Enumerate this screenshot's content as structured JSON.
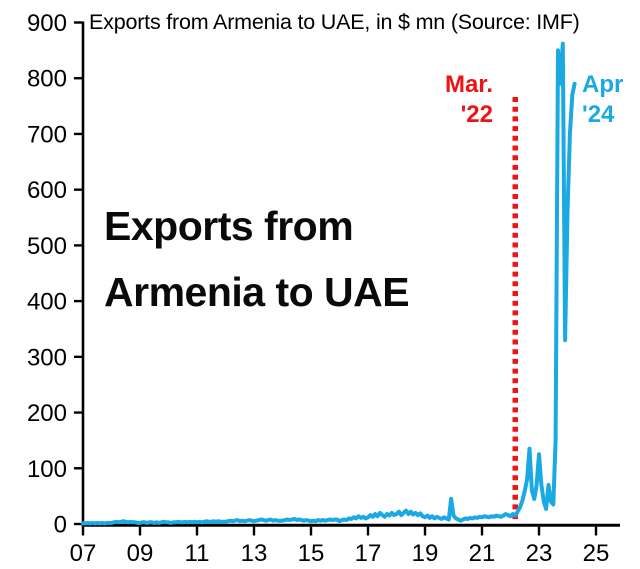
{
  "chart_data": {
    "type": "line",
    "title": "Exports from Armenia to UAE, in $ mn (Source: IMF)",
    "xlabel": "",
    "ylabel": "",
    "ylim": [
      0,
      900
    ],
    "y_ticks": [
      0,
      100,
      200,
      300,
      400,
      500,
      600,
      700,
      800,
      900
    ],
    "x_tick_years": [
      2007,
      2009,
      2011,
      2013,
      2015,
      2017,
      2019,
      2021,
      2023,
      2025
    ],
    "x_tick_labels": [
      "07",
      "09",
      "11",
      "13",
      "15",
      "17",
      "19",
      "21",
      "23",
      "25"
    ],
    "grid": false,
    "legend": "none",
    "line_color": "#1BA9E4",
    "axis_color": "#000000",
    "series": [
      {
        "name": "Exports from Armenia to UAE ($ mn)",
        "start": "2007-01",
        "end": "2024-04",
        "frequency": "monthly",
        "values": [
          1,
          1,
          2,
          1,
          2,
          1,
          2,
          1,
          2,
          1,
          2,
          2,
          2,
          3,
          4,
          3,
          4,
          5,
          4,
          3,
          4,
          3,
          3,
          2,
          2,
          3,
          3,
          2,
          3,
          3,
          2,
          3,
          2,
          3,
          4,
          3,
          3,
          2,
          3,
          3,
          4,
          3,
          3,
          4,
          3,
          4,
          3,
          4,
          3,
          4,
          3,
          4,
          5,
          4,
          4,
          5,
          4,
          5,
          4,
          4,
          4,
          5,
          6,
          5,
          6,
          7,
          5,
          6,
          5,
          6,
          7,
          6,
          5,
          6,
          7,
          8,
          7,
          6,
          7,
          8,
          6,
          7,
          6,
          6,
          6,
          7,
          8,
          7,
          8,
          9,
          7,
          8,
          7,
          6,
          7,
          6,
          5,
          6,
          5,
          7,
          6,
          7,
          6,
          7,
          8,
          7,
          8,
          8,
          5,
          7,
          8,
          7,
          10,
          9,
          12,
          10,
          14,
          11,
          13,
          10,
          12,
          16,
          13,
          18,
          14,
          20,
          16,
          13,
          18,
          15,
          20,
          16,
          18,
          22,
          16,
          20,
          24,
          18,
          22,
          17,
          20,
          16,
          19,
          14,
          12,
          15,
          11,
          14,
          10,
          13,
          11,
          9,
          12,
          10,
          8,
          45,
          15,
          10,
          8,
          6,
          8,
          10,
          9,
          11,
          10,
          12,
          11,
          13,
          12,
          14,
          13,
          12,
          14,
          13,
          15,
          14,
          13,
          15,
          18,
          16,
          14,
          18,
          15,
          22,
          30,
          42,
          60,
          80,
          135,
          60,
          45,
          70,
          125,
          70,
          40,
          27,
          70,
          40,
          35,
          150,
          850,
          790,
          862,
          330,
          560,
          700,
          770,
          790
        ]
      }
    ],
    "annotations": {
      "vline": {
        "date": "2022-03",
        "style": "dotted",
        "color": "#EC1414",
        "label_line1": "Mar.",
        "label_line2": "'22"
      },
      "end_point": {
        "date": "2024-04",
        "value": 790,
        "color": "#1BA9E4",
        "label_line1": "Apr",
        "label_line2": "'24"
      },
      "center_label_line1": "Exports from",
      "center_label_line2": "Armenia to UAE"
    }
  }
}
